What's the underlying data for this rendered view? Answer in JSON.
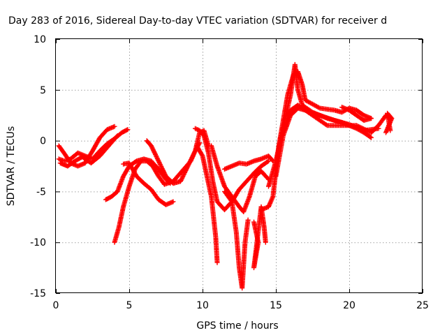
{
  "chart_data": {
    "type": "scatter",
    "title": "Day 283 of 2016, Sidereal Day-to-day VTEC variation (SDTVAR) for receiver d",
    "xlabel": "GPS time / hours",
    "ylabel": "SDTVAR / TECUs",
    "xlim": [
      0,
      25
    ],
    "ylim": [
      -15,
      10
    ],
    "xticks": [
      0,
      5,
      10,
      15,
      20,
      25
    ],
    "yticks": [
      -15,
      -10,
      -5,
      0,
      5,
      10
    ],
    "grid": true,
    "marker": "+",
    "color": "#ff0000",
    "series": [
      {
        "values": [
          [
            0.2,
            -0.5
          ],
          [
            0.6,
            -1.3
          ],
          [
            1.0,
            -2.2
          ],
          [
            1.5,
            -2.5
          ],
          [
            2.0,
            -2.2
          ],
          [
            2.5,
            -1.0
          ],
          [
            3.0,
            0.3
          ],
          [
            3.5,
            1.1
          ],
          [
            4.0,
            1.4
          ]
        ]
      },
      {
        "values": [
          [
            0.2,
            -1.8
          ],
          [
            0.6,
            -2.0
          ],
          [
            1.0,
            -1.8
          ],
          [
            1.5,
            -1.2
          ],
          [
            2.0,
            -1.5
          ],
          [
            2.5,
            -1.8
          ],
          [
            3.0,
            -1.0
          ],
          [
            3.5,
            -0.3
          ],
          [
            4.0,
            0.2
          ],
          [
            4.5,
            0.8
          ],
          [
            4.9,
            1.1
          ]
        ]
      },
      {
        "values": [
          [
            0.3,
            -2.2
          ],
          [
            0.8,
            -2.5
          ],
          [
            1.3,
            -2.0
          ],
          [
            1.8,
            -1.6
          ],
          [
            2.4,
            -2.2
          ],
          [
            3.0,
            -1.5
          ],
          [
            3.6,
            -0.5
          ],
          [
            4.2,
            0.5
          ]
        ]
      },
      {
        "values": [
          [
            3.4,
            -5.8
          ],
          [
            3.8,
            -5.5
          ],
          [
            4.2,
            -5.0
          ],
          [
            4.6,
            -3.5
          ],
          [
            5.0,
            -2.5
          ],
          [
            5.5,
            -2.0
          ],
          [
            6.0,
            -1.8
          ],
          [
            6.5,
            -2.0
          ],
          [
            7.0,
            -2.8
          ],
          [
            7.5,
            -3.8
          ],
          [
            7.8,
            -4.2
          ]
        ]
      },
      {
        "values": [
          [
            4.0,
            -10.0
          ],
          [
            4.3,
            -8.5
          ],
          [
            4.6,
            -6.5
          ],
          [
            5.0,
            -4.5
          ],
          [
            5.4,
            -2.8
          ],
          [
            5.8,
            -2.0
          ],
          [
            6.2,
            -2.0
          ],
          [
            6.6,
            -2.5
          ],
          [
            7.0,
            -3.5
          ],
          [
            7.4,
            -4.3
          ],
          [
            8.0,
            -4.0
          ],
          [
            8.6,
            -3.0
          ],
          [
            9.2,
            -2.0
          ],
          [
            9.5,
            -1.0
          ],
          [
            9.8,
            0.8
          ],
          [
            10.1,
            1.0
          ],
          [
            10.4,
            -0.5
          ]
        ]
      },
      {
        "values": [
          [
            4.6,
            -2.3
          ],
          [
            5.0,
            -2.2
          ],
          [
            5.5,
            -3.5
          ],
          [
            6.0,
            -4.2
          ],
          [
            6.5,
            -4.8
          ],
          [
            7.0,
            -5.8
          ],
          [
            7.5,
            -6.3
          ],
          [
            8.0,
            -6.0
          ]
        ]
      },
      {
        "values": [
          [
            6.2,
            0.0
          ],
          [
            6.5,
            -0.5
          ],
          [
            7.0,
            -2.0
          ],
          [
            7.5,
            -3.5
          ],
          [
            8.0,
            -4.2
          ],
          [
            8.5,
            -4.0
          ],
          [
            9.0,
            -2.5
          ],
          [
            9.5,
            -1.0
          ],
          [
            9.8,
            -0.2
          ]
        ]
      },
      {
        "values": [
          [
            9.5,
            1.2
          ],
          [
            9.8,
            1.0
          ],
          [
            10.1,
            0.5
          ],
          [
            10.4,
            -1.2
          ],
          [
            10.7,
            -4.0
          ],
          [
            11.0,
            -6.0
          ],
          [
            11.5,
            -6.8
          ],
          [
            12.0,
            -6.0
          ],
          [
            12.5,
            -4.8
          ],
          [
            13.0,
            -4.0
          ],
          [
            13.5,
            -3.2
          ],
          [
            14.0,
            -2.5
          ],
          [
            14.5,
            -2.0
          ]
        ]
      },
      {
        "values": [
          [
            9.6,
            -0.5
          ],
          [
            10.0,
            -1.5
          ],
          [
            10.3,
            -3.5
          ],
          [
            10.6,
            -5.5
          ],
          [
            10.9,
            -9.5
          ],
          [
            11.0,
            -12.0
          ]
        ]
      },
      {
        "values": [
          [
            10.6,
            -0.5
          ],
          [
            11.0,
            -2.5
          ],
          [
            11.5,
            -4.5
          ],
          [
            12.0,
            -5.5
          ],
          [
            12.5,
            -6.5
          ],
          [
            12.8,
            -7.0
          ],
          [
            13.2,
            -5.5
          ],
          [
            13.6,
            -3.5
          ],
          [
            14.0,
            -3.0
          ],
          [
            14.5,
            -3.8
          ]
        ]
      },
      {
        "values": [
          [
            11.5,
            -5.0
          ],
          [
            12.0,
            -6.0
          ],
          [
            12.3,
            -9.0
          ],
          [
            12.5,
            -12.5
          ],
          [
            12.7,
            -14.5
          ],
          [
            12.9,
            -10.0
          ],
          [
            13.1,
            -7.8
          ]
        ]
      },
      {
        "values": [
          [
            11.5,
            -2.8
          ],
          [
            12.0,
            -2.5
          ],
          [
            12.5,
            -2.2
          ],
          [
            13.0,
            -2.3
          ],
          [
            13.5,
            -2.0
          ],
          [
            14.0,
            -1.8
          ],
          [
            14.5,
            -1.5
          ],
          [
            14.8,
            -2.0
          ]
        ]
      },
      {
        "values": [
          [
            13.5,
            -8.0
          ],
          [
            13.8,
            -10.0
          ],
          [
            13.5,
            -12.5
          ],
          [
            14.0,
            -6.5
          ],
          [
            14.2,
            -8.5
          ],
          [
            14.3,
            -10.0
          ]
        ]
      },
      {
        "values": [
          [
            14.0,
            -6.8
          ],
          [
            14.5,
            -6.5
          ],
          [
            14.8,
            -5.5
          ],
          [
            15.0,
            -3.0
          ],
          [
            15.2,
            -0.5
          ],
          [
            15.5,
            2.0
          ],
          [
            15.8,
            4.5
          ],
          [
            16.2,
            6.5
          ],
          [
            16.5,
            6.8
          ],
          [
            16.8,
            5.5
          ],
          [
            17.0,
            4.0
          ],
          [
            18.0,
            3.2
          ],
          [
            19.0,
            3.0
          ],
          [
            19.5,
            2.8
          ],
          [
            20.0,
            3.2
          ],
          [
            20.5,
            3.0
          ],
          [
            21.0,
            2.5
          ],
          [
            21.5,
            2.2
          ]
        ]
      },
      {
        "values": [
          [
            14.5,
            -4.5
          ],
          [
            15.0,
            -2.0
          ],
          [
            15.3,
            0.0
          ],
          [
            15.6,
            2.0
          ],
          [
            16.0,
            4.5
          ],
          [
            16.3,
            7.5
          ],
          [
            16.5,
            5.0
          ],
          [
            16.8,
            3.5
          ],
          [
            17.5,
            2.8
          ],
          [
            18.5,
            2.2
          ],
          [
            19.5,
            1.8
          ],
          [
            20.5,
            1.2
          ],
          [
            21.0,
            0.8
          ],
          [
            21.5,
            0.3
          ]
        ]
      },
      {
        "values": [
          [
            15.0,
            -3.5
          ],
          [
            15.5,
            0.5
          ],
          [
            16.0,
            2.5
          ],
          [
            16.5,
            3.2
          ],
          [
            17.0,
            3.0
          ],
          [
            18.0,
            2.5
          ],
          [
            19.0,
            2.0
          ],
          [
            20.0,
            1.6
          ],
          [
            21.0,
            1.0
          ],
          [
            22.0,
            1.2
          ]
        ]
      },
      {
        "values": [
          [
            15.5,
            1.0
          ],
          [
            16.0,
            3.0
          ],
          [
            16.5,
            3.5
          ],
          [
            17.5,
            2.5
          ],
          [
            18.5,
            1.5
          ],
          [
            19.5,
            1.5
          ],
          [
            20.5,
            1.5
          ],
          [
            21.5,
            0.8
          ],
          [
            22.0,
            1.5
          ],
          [
            22.5,
            2.5
          ],
          [
            22.8,
            2.2
          ]
        ]
      },
      {
        "values": [
          [
            19.5,
            3.3
          ],
          [
            20.0,
            3.0
          ],
          [
            20.5,
            2.5
          ],
          [
            21.0,
            2.0
          ],
          [
            21.5,
            2.2
          ]
        ]
      },
      {
        "values": [
          [
            22.5,
            0.8
          ],
          [
            22.7,
            1.5
          ],
          [
            22.9,
            2.2
          ],
          [
            22.6,
            2.7
          ],
          [
            22.8,
            1.0
          ]
        ]
      }
    ]
  }
}
